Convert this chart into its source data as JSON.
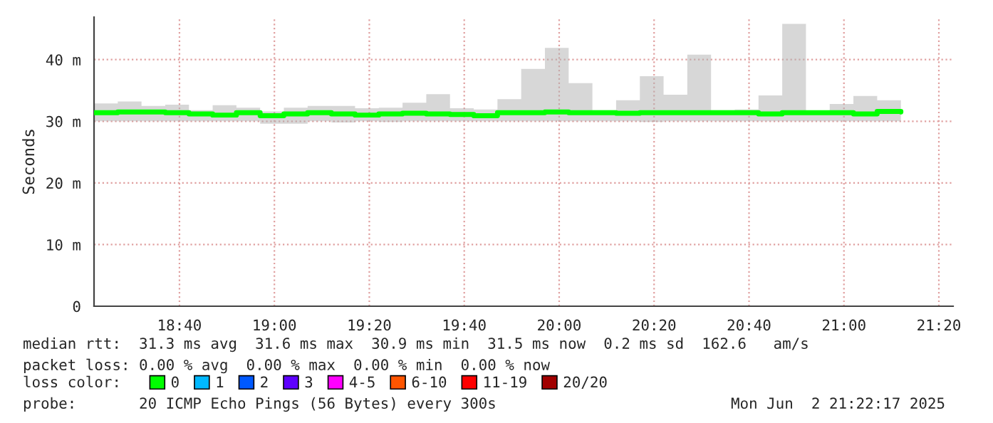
{
  "chart_data": {
    "type": "step",
    "ylabel": "Seconds",
    "x": [
      "2025-06-02T18:22",
      "2025-06-02T18:27",
      "2025-06-02T18:32",
      "2025-06-02T18:37",
      "2025-06-02T18:42",
      "2025-06-02T18:47",
      "2025-06-02T18:52",
      "2025-06-02T18:57",
      "2025-06-02T19:02",
      "2025-06-02T19:07",
      "2025-06-02T19:12",
      "2025-06-02T19:17",
      "2025-06-02T19:22",
      "2025-06-02T19:27",
      "2025-06-02T19:32",
      "2025-06-02T19:37",
      "2025-06-02T19:42",
      "2025-06-02T19:47",
      "2025-06-02T19:52",
      "2025-06-02T19:57",
      "2025-06-02T20:02",
      "2025-06-02T20:07",
      "2025-06-02T20:12",
      "2025-06-02T20:17",
      "2025-06-02T20:22",
      "2025-06-02T20:27",
      "2025-06-02T20:32",
      "2025-06-02T20:37",
      "2025-06-02T20:42",
      "2025-06-02T20:47",
      "2025-06-02T20:52",
      "2025-06-02T20:57",
      "2025-06-02T21:02",
      "2025-06-02T21:07",
      "2025-06-02T21:12"
    ],
    "series": [
      {
        "name": "0",
        "color": "#00ff00",
        "values": [
          31.4,
          31.5,
          31.5,
          31.4,
          31.2,
          31.0,
          31.4,
          30.9,
          31.2,
          31.4,
          31.2,
          31.0,
          31.2,
          31.3,
          31.2,
          31.1,
          30.9,
          31.4,
          31.4,
          31.5,
          31.4,
          31.4,
          31.3,
          31.4,
          31.4,
          31.4,
          31.4,
          31.4,
          31.2,
          31.4,
          31.4,
          31.4,
          31.2,
          31.6,
          31.5
        ],
        "lower": [
          30.0,
          30.0,
          30.0,
          30.0,
          30.0,
          30.0,
          30.0,
          29.6,
          29.6,
          30.0,
          29.8,
          30.0,
          29.9,
          30.0,
          30.0,
          30.0,
          30.0,
          30.0,
          30.0,
          30.0,
          30.0,
          30.0,
          30.0,
          29.9,
          30.0,
          30.0,
          30.0,
          30.0,
          30.0,
          30.0,
          30.0,
          30.0,
          30.0,
          30.0,
          30.0
        ],
        "upper": [
          32.9,
          33.2,
          32.5,
          32.7,
          31.8,
          32.6,
          32.2,
          31.6,
          32.2,
          32.5,
          32.5,
          32.1,
          32.2,
          33.0,
          34.4,
          32.1,
          31.9,
          33.6,
          38.5,
          41.9,
          36.2,
          31.8,
          33.4,
          37.3,
          34.3,
          40.8,
          31.8,
          31.9,
          34.2,
          45.8,
          31.7,
          32.8,
          34.1,
          33.4,
          32.4
        ]
      },
      {
        "name": "1",
        "color": "#00b8ff",
        "values": [
          null,
          null,
          null,
          null,
          null,
          null,
          null,
          null,
          null,
          null,
          null,
          null,
          null,
          null,
          null,
          null,
          null,
          null,
          null,
          null,
          null,
          null,
          null,
          null,
          null,
          null,
          null,
          null,
          null,
          null,
          null,
          null,
          null,
          null,
          null
        ]
      },
      {
        "name": "2",
        "color": "#0059ff",
        "values": [
          null,
          null,
          null,
          null,
          null,
          null,
          null,
          null,
          null,
          null,
          null,
          null,
          null,
          null,
          null,
          null,
          null,
          null,
          null,
          null,
          null,
          null,
          null,
          null,
          null,
          null,
          null,
          null,
          null,
          null,
          null,
          null,
          null,
          null,
          null
        ]
      },
      {
        "name": "3",
        "color": "#5e00ff",
        "values": [
          null,
          null,
          null,
          null,
          null,
          null,
          null,
          null,
          null,
          null,
          null,
          null,
          null,
          null,
          null,
          null,
          null,
          null,
          null,
          null,
          null,
          null,
          null,
          null,
          null,
          null,
          null,
          null,
          null,
          null,
          null,
          null,
          null,
          null,
          null
        ]
      },
      {
        "name": "4-5",
        "color": "#ff00ff",
        "values": [
          null,
          null,
          null,
          null,
          null,
          null,
          null,
          null,
          null,
          null,
          null,
          null,
          null,
          null,
          null,
          null,
          null,
          null,
          null,
          null,
          null,
          null,
          null,
          null,
          null,
          null,
          null,
          null,
          null,
          null,
          null,
          null,
          null,
          null,
          null
        ]
      },
      {
        "name": "6-10",
        "color": "#ff5500",
        "values": [
          null,
          null,
          null,
          null,
          null,
          null,
          null,
          null,
          null,
          null,
          null,
          null,
          null,
          null,
          null,
          null,
          null,
          null,
          null,
          null,
          null,
          null,
          null,
          null,
          null,
          null,
          null,
          null,
          null,
          null,
          null,
          null,
          null,
          null,
          null
        ]
      },
      {
        "name": "11-19",
        "color": "#ff0000",
        "values": [
          null,
          null,
          null,
          null,
          null,
          null,
          null,
          null,
          null,
          null,
          null,
          null,
          null,
          null,
          null,
          null,
          null,
          null,
          null,
          null,
          null,
          null,
          null,
          null,
          null,
          null,
          null,
          null,
          null,
          null,
          null,
          null,
          null,
          null,
          null
        ]
      },
      {
        "name": "20/20",
        "color": "#a10000",
        "values": [
          null,
          null,
          null,
          null,
          null,
          null,
          null,
          null,
          null,
          null,
          null,
          null,
          null,
          null,
          null,
          null,
          null,
          null,
          null,
          null,
          null,
          null,
          null,
          null,
          null,
          null,
          null,
          null,
          null,
          null,
          null,
          null,
          null,
          null,
          null
        ]
      }
    ],
    "legend_title": "loss color:",
    "legend": "bottom",
    "line_style": "solid",
    "xlim": [
      "2025-06-02T18:22",
      "2025-06-02T21:23"
    ],
    "xticks": [
      {
        "value": "2025-06-02T18:40",
        "label": "18:40"
      },
      {
        "value": "2025-06-02T19:00",
        "label": "19:00"
      },
      {
        "value": "2025-06-02T19:20",
        "label": "19:20"
      },
      {
        "value": "2025-06-02T19:40",
        "label": "19:40"
      },
      {
        "value": "2025-06-02T20:00",
        "label": "20:00"
      },
      {
        "value": "2025-06-02T20:20",
        "label": "20:20"
      },
      {
        "value": "2025-06-02T20:40",
        "label": "20:40"
      },
      {
        "value": "2025-06-02T21:00",
        "label": "21:00"
      },
      {
        "value": "2025-06-02T21:20",
        "label": "21:20"
      }
    ],
    "ylim": [
      0,
      46.9
    ],
    "yticks": [
      {
        "value": 0,
        "label": "0"
      },
      {
        "value": 10,
        "label": "10 m"
      },
      {
        "value": 20,
        "label": "20 m"
      },
      {
        "value": 30,
        "label": "30 m"
      },
      {
        "value": 40,
        "label": "40 m"
      }
    ],
    "grid": true,
    "annotations": [
      "median rtt:  31.3 ms avg  31.6 ms max  30.9 ms min  31.5 ms now  0.2 ms sd  162.6   am/s",
      "packet loss: 0.00 % avg  0.00 % max  0.00 % min  0.00 % now",
      "probe:       20 ICMP Echo Pings (56 Bytes) every 300s",
      "Mon Jun  2 21:22:17 2025"
    ]
  }
}
